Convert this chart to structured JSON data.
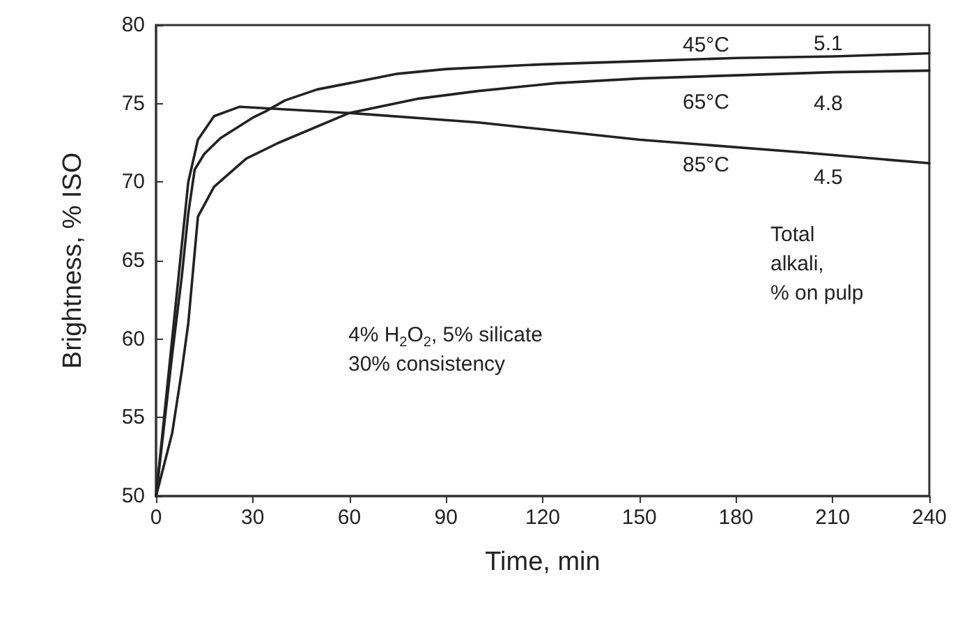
{
  "chart_data": {
    "type": "line",
    "xlabel": "Time, min",
    "ylabel": "Brightness, % ISO",
    "xlim": [
      0,
      240
    ],
    "xticks": [
      0,
      30,
      60,
      90,
      120,
      150,
      180,
      210,
      240
    ],
    "ylim": [
      50,
      80
    ],
    "yticks": [
      50,
      55,
      60,
      65,
      70,
      75,
      80
    ],
    "grid": false,
    "marker": "none",
    "line_style": "solid",
    "series": [
      {
        "color": "#222222",
        "x": [
          0,
          5,
          8,
          10,
          12,
          15,
          20,
          30,
          34,
          40,
          50,
          60,
          75,
          90,
          120,
          150,
          180,
          210,
          240
        ],
        "values": [
          50,
          59,
          64,
          68,
          70.8,
          71.8,
          72.8,
          74.1,
          74.5,
          75.2,
          75.9,
          76.3,
          76.9,
          77.2,
          77.5,
          77.7,
          77.9,
          78.0,
          78.2
        ]
      },
      {
        "color": "#222222",
        "x": [
          0,
          5,
          8,
          10,
          13,
          18,
          28,
          38,
          60,
          81,
          100,
          124,
          150,
          180,
          210,
          240
        ],
        "values": [
          50,
          54,
          58,
          61,
          67.8,
          69.7,
          71.5,
          72.5,
          74.4,
          75.3,
          75.8,
          76.3,
          76.6,
          76.8,
          77.0,
          77.1
        ]
      },
      {
        "color": "#222222",
        "x": [
          0,
          4,
          8,
          10,
          13,
          18,
          26,
          60,
          100,
          150,
          200,
          240
        ],
        "values": [
          50,
          58,
          66,
          70,
          72.7,
          74.2,
          74.8,
          74.4,
          73.8,
          72.7,
          71.9,
          71.2
        ]
      }
    ],
    "annotations": [
      "45°C",
      "5.1",
      "65°C",
      "4.8",
      "85°C",
      "4.5",
      "Total\nalkali,\n% on pulp",
      "4% H$_{2}$O$_{2}$, 5% silicate\n30% consistency"
    ]
  }
}
